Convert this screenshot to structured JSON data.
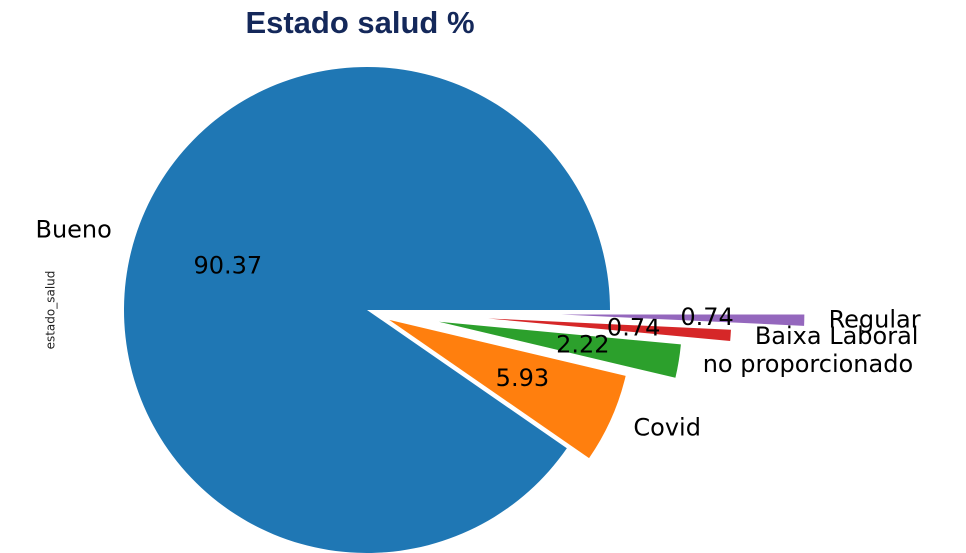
{
  "chart_data": {
    "type": "pie",
    "title": "Estado salud %",
    "ylabel": "estado_salud",
    "categories": [
      "Bueno",
      "Covid",
      "no proporcionado",
      "Baixa Laboral",
      "Regular"
    ],
    "values": [
      90.37,
      5.93,
      2.22,
      0.74,
      0.74
    ],
    "colors": [
      "#1f77b4",
      "#ff7f0e",
      "#2ca02c",
      "#d62728",
      "#9467bd"
    ],
    "explode": [
      0,
      0.1,
      0.3,
      0.5,
      0.8
    ]
  }
}
